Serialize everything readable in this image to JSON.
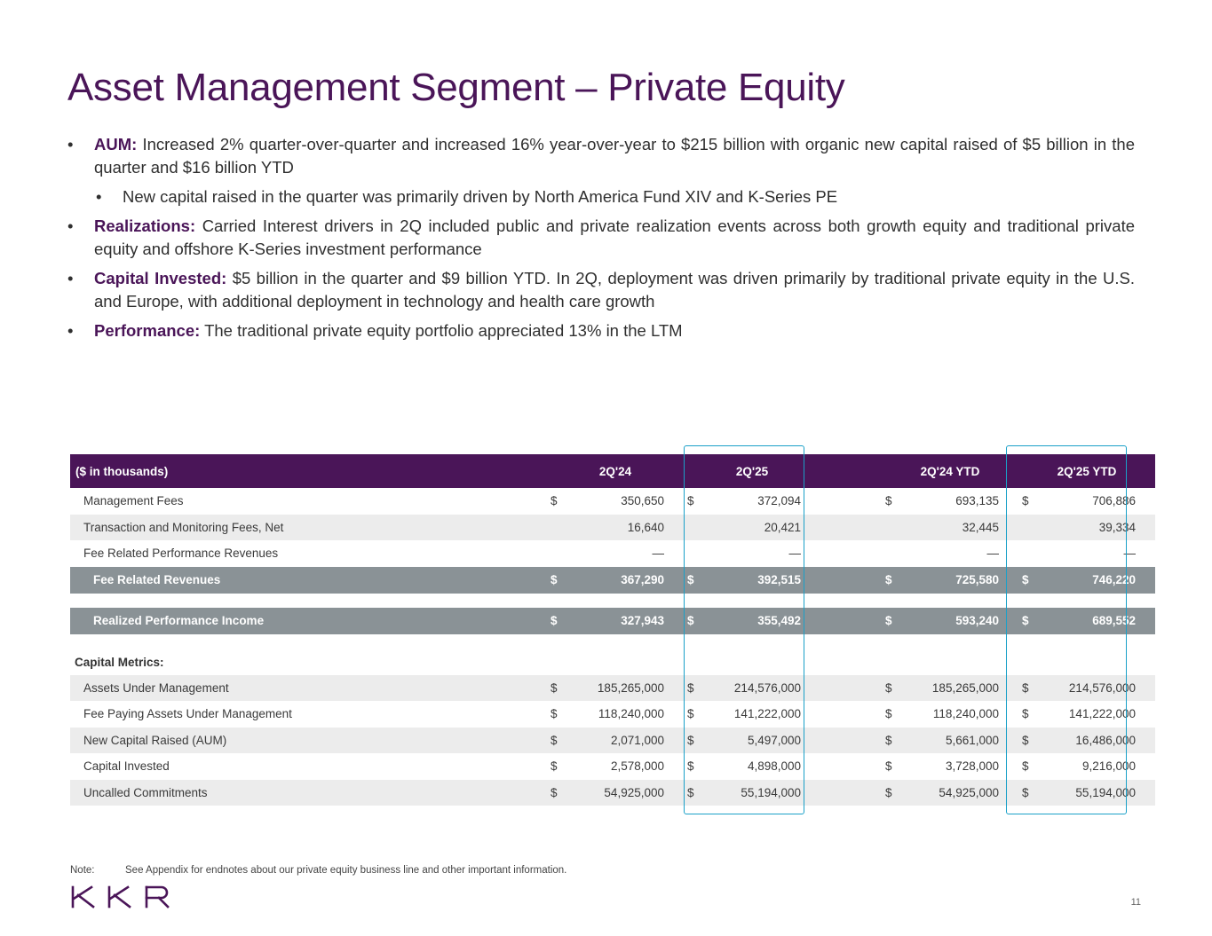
{
  "title": "Asset Management Segment – Private Equity",
  "bullets": [
    {
      "label": "AUM:",
      "text": " Increased 2% quarter-over-quarter and increased 16% year-over-year to $215 billion with organic new capital raised of $5 billion in the quarter and $16 billion YTD"
    },
    {
      "label": "",
      "text": "New capital raised in the quarter was primarily driven by North America Fund XIV and K-Series PE"
    },
    {
      "label": "Realizations:",
      "text": " Carried Interest drivers in 2Q included public and private realization events across both growth equity and traditional private equity and offshore K-Series investment performance"
    },
    {
      "label": "Capital Invested:",
      "text": " $5 billion in the quarter and $9 billion YTD. In 2Q, deployment was driven primarily by traditional private equity in the U.S. and Europe, with additional deployment in technology and health care growth"
    },
    {
      "label": "Performance:",
      "text": " The traditional private equity portfolio appreciated 13% in the LTM"
    }
  ],
  "table": {
    "header": {
      "label": "($ in thousands)",
      "cols": [
        "2Q'24",
        "2Q'25",
        "2Q'24 YTD",
        "2Q'25 YTD"
      ]
    },
    "currency": "$",
    "rows": [
      {
        "label": "Management Fees",
        "values": [
          "350,650",
          "372,094",
          "693,135",
          "706,886"
        ]
      },
      {
        "label": "Transaction and Monitoring Fees, Net",
        "values": [
          "16,640",
          "20,421",
          "32,445",
          "39,334"
        ]
      },
      {
        "label": "Fee Related Performance Revenues",
        "values": [
          "—",
          "—",
          "—",
          "—"
        ]
      }
    ],
    "fee_related_revenues": {
      "label": "Fee Related Revenues",
      "values": [
        "367,290",
        "392,515",
        "725,580",
        "746,220"
      ]
    },
    "realized_performance_income": {
      "label": "Realized Performance Income",
      "values": [
        "327,943",
        "355,492",
        "593,240",
        "689,552"
      ]
    },
    "section_label": "Capital Metrics:",
    "capital_rows": [
      {
        "label": "Assets Under Management",
        "values": [
          "185,265,000",
          "214,576,000",
          "185,265,000",
          "214,576,000"
        ]
      },
      {
        "label": "Fee Paying Assets Under Management",
        "values": [
          "118,240,000",
          "141,222,000",
          "118,240,000",
          "141,222,000"
        ]
      },
      {
        "label": "New Capital Raised (AUM)",
        "values": [
          "2,071,000",
          "5,497,000",
          "5,661,000",
          "16,486,000"
        ]
      },
      {
        "label": "Capital Invested",
        "values": [
          "2,578,000",
          "4,898,000",
          "3,728,000",
          "9,216,000"
        ]
      },
      {
        "label": "Uncalled Commitments",
        "values": [
          "54,925,000",
          "55,194,000",
          "54,925,000",
          "55,194,000"
        ]
      }
    ]
  },
  "note": {
    "label": "Note:",
    "text": "See Appendix for endnotes about our private equity business line and other important information."
  },
  "logo_text": "KKR",
  "page_number": "11",
  "colors": {
    "brand_purple": "#4a1558",
    "highlight": "#1aa0c8",
    "total_row": "#8a9296"
  }
}
